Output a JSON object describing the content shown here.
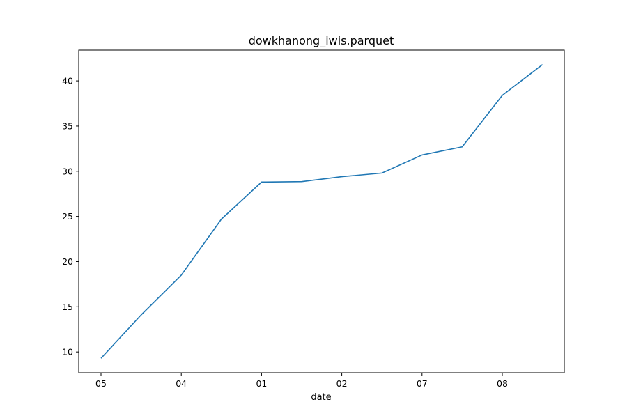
{
  "chart_data": {
    "type": "line",
    "title": "dowkhanong_iwis.parquet",
    "xlabel": "date",
    "ylabel": "",
    "x_tick_labels": [
      "05",
      "04",
      "01",
      "02",
      "07",
      "08"
    ],
    "x": [
      "05",
      "",
      "04",
      "",
      "01",
      "",
      "02",
      "",
      "07",
      "",
      "08",
      ""
    ],
    "ylim": [
      7.7,
      43.4
    ],
    "yticks": [
      10,
      15,
      20,
      25,
      30,
      35,
      40
    ],
    "grid": false,
    "series": [
      {
        "color": "#1f77b4",
        "values": [
          9.3,
          14.1,
          18.5,
          24.7,
          28.8,
          28.85,
          29.4,
          29.8,
          31.8,
          32.7,
          38.4,
          41.8
        ]
      }
    ]
  }
}
